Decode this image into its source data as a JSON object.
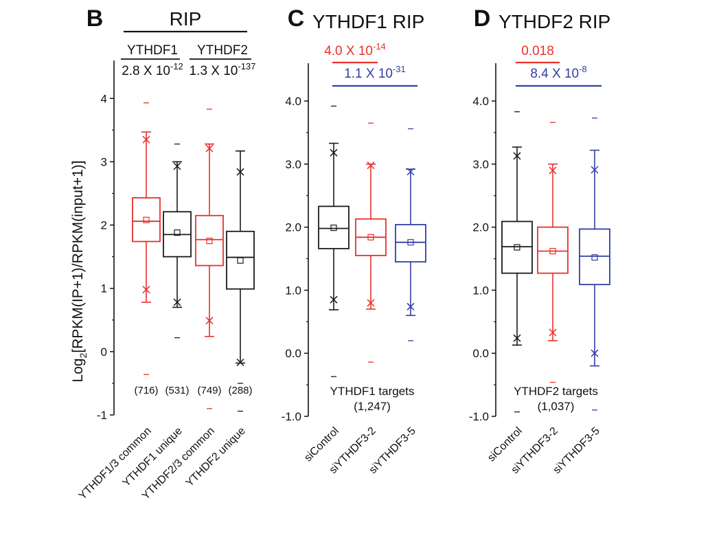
{
  "colors": {
    "black": "#1a1a1a",
    "red": "#e8302a",
    "blue": "#2f3fa6"
  },
  "chart_data": [
    {
      "type": "box",
      "panel_label": "B",
      "title": "RIP",
      "ylabel_pre": "Log",
      "ylabel_sub": "2",
      "ylabel_post": "[RPKM(IP+1)/RPKM(input+1)]",
      "ylim": [
        -1,
        4.6
      ],
      "yticks": [
        {
          "value": -1,
          "label": "-1"
        },
        {
          "value": 0,
          "label": "0"
        },
        {
          "value": 1,
          "label": "1"
        },
        {
          "value": 2,
          "label": "2"
        },
        {
          "value": 3,
          "label": "3"
        },
        {
          "value": 4,
          "label": "4"
        }
      ],
      "groups": [
        {
          "name": "YTHDF1",
          "pvalue_base": "2.8 X 10",
          "pvalue_exp": "-12",
          "span": [
            0,
            1
          ]
        },
        {
          "name": "YTHDF2",
          "pvalue_base": "1.3 X 10",
          "pvalue_exp": "-137",
          "span": [
            2,
            3
          ]
        }
      ],
      "boxes": [
        {
          "category": "YTHDF1/3 common",
          "color": "red",
          "count": "(716)",
          "q1": 1.74,
          "median": 2.06,
          "q3": 2.43,
          "mean": 2.08,
          "whisker_low": 0.78,
          "whisker_high": 3.47,
          "x_low": 0.98,
          "x_high": 3.35,
          "min": -0.36,
          "max": 3.93
        },
        {
          "category": "YTHDF1 unique",
          "color": "black",
          "count": "(531)",
          "q1": 1.5,
          "median": 1.85,
          "q3": 2.21,
          "mean": 1.88,
          "whisker_low": 0.7,
          "whisker_high": 3.0,
          "x_low": 0.78,
          "x_high": 2.93,
          "min": 0.22,
          "max": 3.28
        },
        {
          "category": "YTHDF2/3 common",
          "color": "red",
          "count": "(749)",
          "q1": 1.36,
          "median": 1.77,
          "q3": 2.15,
          "mean": 1.75,
          "whisker_low": 0.24,
          "whisker_high": 3.28,
          "x_low": 0.49,
          "x_high": 3.21,
          "min": -0.9,
          "max": 3.83
        },
        {
          "category": "YTHDF2 unique",
          "color": "black",
          "count": "(288)",
          "q1": 0.99,
          "median": 1.49,
          "q3": 1.9,
          "mean": 1.44,
          "whisker_low": -0.18,
          "whisker_high": 3.17,
          "x_low": -0.17,
          "x_high": 2.84,
          "min": -0.5,
          "max": -0.94
        }
      ]
    },
    {
      "type": "box",
      "panel_label": "C",
      "title": "YTHDF1 RIP",
      "ylim": [
        -1,
        4.6
      ],
      "yticks": [
        {
          "value": -1,
          "label": "-1.0"
        },
        {
          "value": 0,
          "label": "0.0"
        },
        {
          "value": 1,
          "label": "1.0"
        },
        {
          "value": 2,
          "label": "2.0"
        },
        {
          "value": 3,
          "label": "3.0"
        },
        {
          "value": 4,
          "label": "4.0"
        }
      ],
      "comparisons": [
        {
          "pvalue_base": "4.0 X 10",
          "pvalue_exp": "-14",
          "color": "red",
          "from": 0,
          "to": 1
        },
        {
          "pvalue_base": "1.1 X 10",
          "pvalue_exp": "-31",
          "color": "blue",
          "from": 0,
          "to": 2
        }
      ],
      "footnote": "YTHDF1 targets",
      "footnote_count": "(1,247)",
      "boxes": [
        {
          "category": "siControl",
          "color": "black",
          "q1": 1.66,
          "median": 1.98,
          "q3": 2.33,
          "mean": 1.99,
          "whisker_low": 0.69,
          "whisker_high": 3.33,
          "x_low": 0.85,
          "x_high": 3.18,
          "min": -0.37,
          "max": 3.92
        },
        {
          "category": "siYTHDF3-2",
          "color": "red",
          "q1": 1.55,
          "median": 1.84,
          "q3": 2.13,
          "mean": 1.84,
          "whisker_low": 0.7,
          "whisker_high": 3.0,
          "x_low": 0.8,
          "x_high": 2.98,
          "min": -0.14,
          "max": 3.65
        },
        {
          "category": "siYTHDF3-5",
          "color": "blue",
          "q1": 1.45,
          "median": 1.76,
          "q3": 2.04,
          "mean": 1.76,
          "whisker_low": 0.6,
          "whisker_high": 2.92,
          "x_low": 0.74,
          "x_high": 2.88,
          "min": 0.2,
          "max": 3.56
        }
      ]
    },
    {
      "type": "box",
      "panel_label": "D",
      "title": "YTHDF2 RIP",
      "ylim": [
        -1,
        4.6
      ],
      "yticks": [
        {
          "value": -1,
          "label": "-1.0"
        },
        {
          "value": 0,
          "label": "0.0"
        },
        {
          "value": 1,
          "label": "1.0"
        },
        {
          "value": 2,
          "label": "2.0"
        },
        {
          "value": 3,
          "label": "3.0"
        },
        {
          "value": 4,
          "label": "4.0"
        }
      ],
      "comparisons": [
        {
          "pvalue_base": "0.018",
          "pvalue_exp": "",
          "color": "red",
          "from": 0,
          "to": 1
        },
        {
          "pvalue_base": "8.4 X 10",
          "pvalue_exp": "-8",
          "color": "blue",
          "from": 0,
          "to": 2
        }
      ],
      "footnote": "YTHDF2 targets",
      "footnote_count": "(1,037)",
      "boxes": [
        {
          "category": "siControl",
          "color": "black",
          "q1": 1.27,
          "median": 1.69,
          "q3": 2.09,
          "mean": 1.68,
          "whisker_low": 0.13,
          "whisker_high": 3.27,
          "x_low": 0.24,
          "x_high": 3.13,
          "min": -0.93,
          "max": 3.83
        },
        {
          "category": "siYTHDF3-2",
          "color": "red",
          "q1": 1.27,
          "median": 1.62,
          "q3": 2.0,
          "mean": 1.62,
          "whisker_low": 0.2,
          "whisker_high": 3.0,
          "x_low": 0.33,
          "x_high": 2.9,
          "min": -0.46,
          "max": 3.66
        },
        {
          "category": "siYTHDF3-5",
          "color": "blue",
          "q1": 1.09,
          "median": 1.54,
          "q3": 1.97,
          "mean": 1.52,
          "whisker_low": -0.2,
          "whisker_high": 3.22,
          "x_low": 0.0,
          "x_high": 2.91,
          "min": -0.9,
          "max": 3.73
        }
      ]
    }
  ]
}
